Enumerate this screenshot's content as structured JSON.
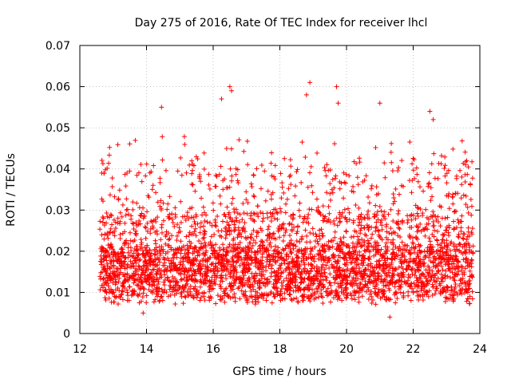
{
  "chart_data": {
    "type": "scatter",
    "title": "Day 275 of 2016, Rate Of TEC Index for receiver lhcl",
    "xlabel": "GPS time / hours",
    "ylabel": "ROTI / TECUs",
    "xlim": [
      12,
      24
    ],
    "ylim": [
      0,
      0.07
    ],
    "x_ticks": [
      "12",
      "14",
      "16",
      "18",
      "20",
      "22",
      "24"
    ],
    "y_ticks": [
      "0",
      "0.01",
      "0.02",
      "0.03",
      "0.04",
      "0.05",
      "0.06",
      "0.07"
    ],
    "grid": true,
    "marker": "+",
    "series": [
      {
        "name": "ROTI",
        "color": "#ff0000",
        "x_range": [
          12.6,
          23.8
        ],
        "typical_range": [
          0.007,
          0.04
        ],
        "notable_points": [
          {
            "x": 14.45,
            "y": 0.055
          },
          {
            "x": 16.25,
            "y": 0.057
          },
          {
            "x": 16.5,
            "y": 0.06
          },
          {
            "x": 16.55,
            "y": 0.059
          },
          {
            "x": 18.9,
            "y": 0.061
          },
          {
            "x": 18.8,
            "y": 0.058
          },
          {
            "x": 19.7,
            "y": 0.06
          },
          {
            "x": 19.75,
            "y": 0.056
          },
          {
            "x": 21.0,
            "y": 0.056
          },
          {
            "x": 22.5,
            "y": 0.054
          },
          {
            "x": 22.6,
            "y": 0.052
          },
          {
            "x": 21.3,
            "y": 0.004
          },
          {
            "x": 13.9,
            "y": 0.005
          }
        ]
      }
    ]
  }
}
